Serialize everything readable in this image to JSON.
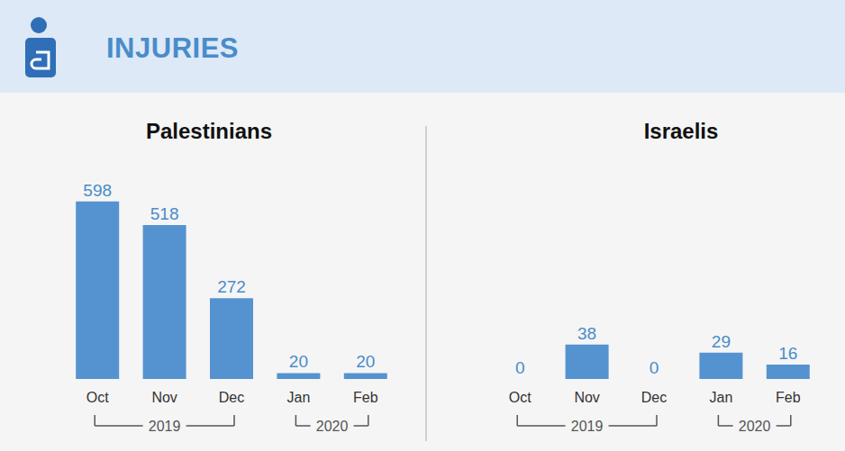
{
  "header": {
    "title": "INJURIES"
  },
  "chart_data": [
    {
      "type": "bar",
      "title": "Palestinians",
      "categories": [
        "Oct",
        "Nov",
        "Dec",
        "Jan",
        "Feb"
      ],
      "values": [
        598,
        518,
        272,
        20,
        20
      ],
      "color": "#5593d0",
      "ylim": [
        0,
        700
      ],
      "yticks": [
        0,
        700
      ],
      "grid": false,
      "data_labels": true,
      "tick_labels": "x",
      "year_groups": [
        {
          "label": "2019",
          "from": "Oct",
          "to": "Dec"
        },
        {
          "label": "2020",
          "from": "Jan",
          "to": "Feb"
        }
      ]
    },
    {
      "type": "bar",
      "title": "Israelis",
      "categories": [
        "Oct",
        "Nov",
        "Dec",
        "Jan",
        "Feb"
      ],
      "values": [
        0,
        38,
        0,
        29,
        16
      ],
      "color": "#5593d0",
      "ylim": [
        0,
        230
      ],
      "yticks": [
        0,
        230
      ],
      "grid": false,
      "data_labels": true,
      "tick_labels": "x",
      "year_groups": [
        {
          "label": "2019",
          "from": "Oct",
          "to": "Dec"
        },
        {
          "label": "2020",
          "from": "Jan",
          "to": "Feb"
        }
      ]
    }
  ]
}
